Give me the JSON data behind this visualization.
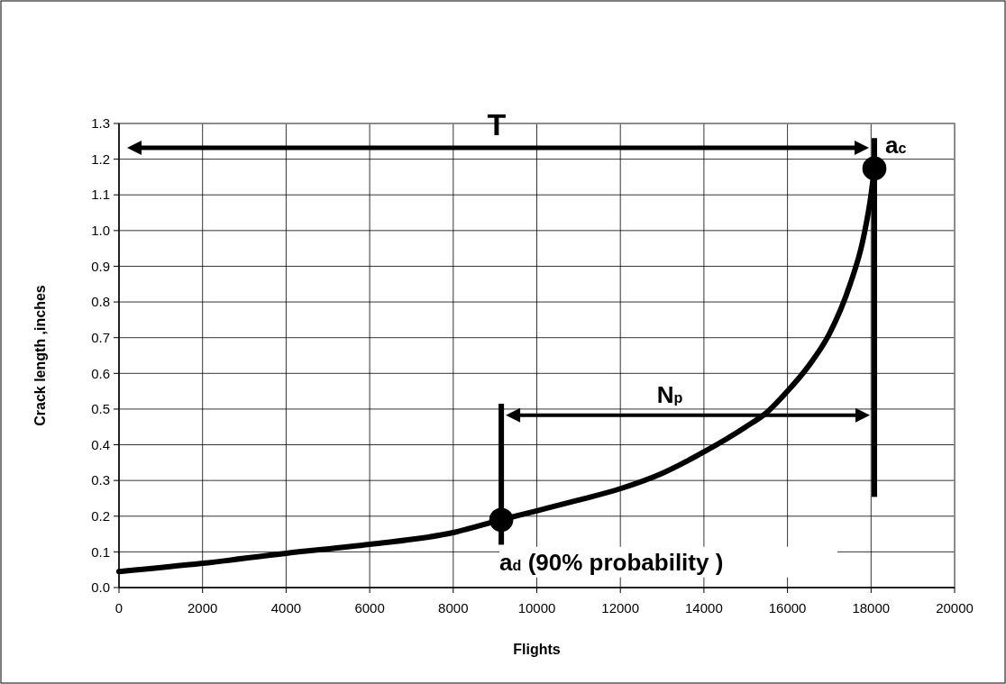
{
  "chart_data": {
    "type": "line",
    "xlabel": "Flights",
    "ylabel": "Crack length ,inches",
    "xlim": [
      0,
      20000
    ],
    "xticks": [
      0,
      2000,
      4000,
      6000,
      8000,
      10000,
      12000,
      14000,
      16000,
      18000,
      20000
    ],
    "ylim": [
      0,
      1.3
    ],
    "yticks": [
      {
        "value": 0,
        "label": "0.0"
      },
      0.1,
      0.2,
      0.3,
      0.4,
      0.5,
      0.6,
      0.7,
      0.8,
      0.9,
      {
        "value": 1,
        "label": "1.0"
      },
      1.1,
      1.2,
      1.3
    ],
    "grid": true,
    "series": [
      {
        "color": "#000000",
        "marker": "none",
        "x": [
          0,
          2000,
          4000,
          6000,
          8000,
          9150,
          10000,
          11000,
          12000,
          13000,
          14000,
          15000,
          15500,
          16000,
          16500,
          17000,
          17500,
          17800,
          18000,
          18080
        ],
        "values": [
          0.045,
          0.068,
          0.096,
          0.121,
          0.154,
          0.19,
          0.215,
          0.245,
          0.277,
          0.32,
          0.38,
          0.45,
          0.49,
          0.55,
          0.62,
          0.71,
          0.85,
          0.97,
          1.1,
          1.174
        ]
      },
      {
        "type": "scatter",
        "color": "#000000",
        "marker": "circle",
        "x": [
          9150,
          18080
        ],
        "values": [
          0.19,
          1.174
        ]
      }
    ],
    "annotations": [
      "T",
      "a$_{c}$",
      "N$_{p}$",
      "a$_{d}$ (90% probability )"
    ]
  }
}
